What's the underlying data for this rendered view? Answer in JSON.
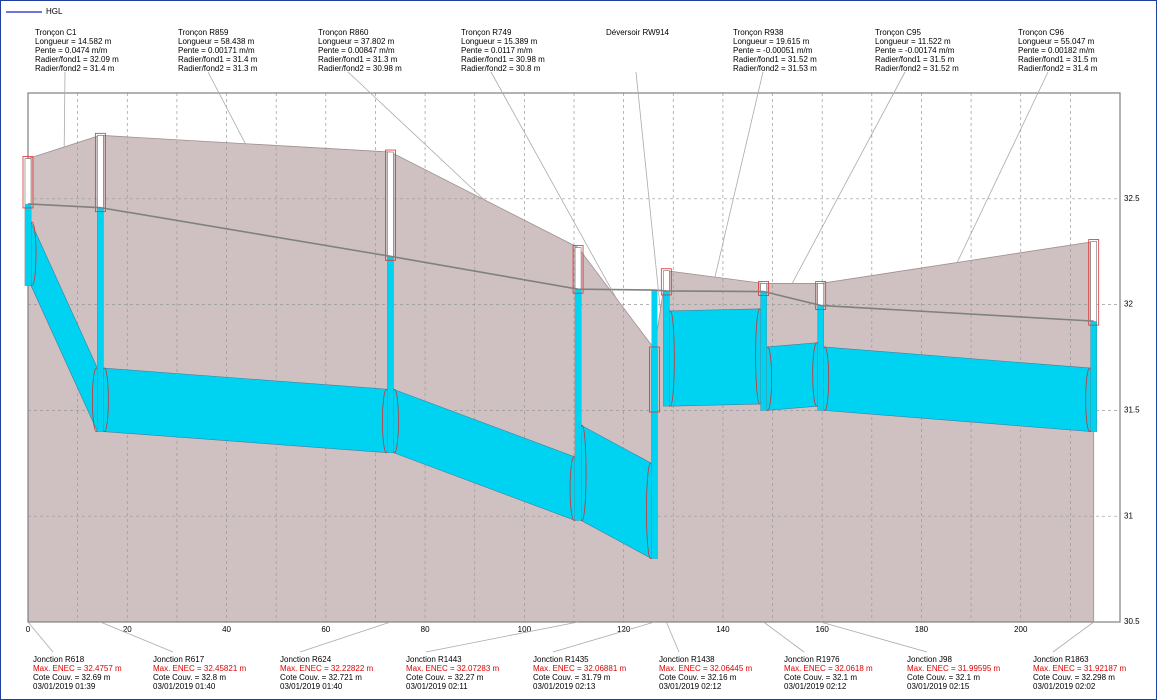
{
  "chart_data": {
    "type": "profile",
    "legend": "HGL",
    "legend_color": "#2020c0",
    "hgl_color": "#808080",
    "ground_color": "#cfc1c1",
    "pipe_color": "#00d2f2",
    "xlim": [
      0,
      220
    ],
    "ylim": [
      30.5,
      33
    ],
    "xticks": [
      0,
      20,
      40,
      60,
      80,
      100,
      120,
      140,
      160,
      180,
      200
    ],
    "xminor": [
      10,
      30,
      50,
      70,
      90,
      110,
      130,
      150,
      170,
      190,
      210
    ],
    "yticks": [
      30.5,
      31,
      31.5,
      32,
      32.5
    ],
    "grid": true,
    "junctions": [
      {
        "name": "Jonction R618",
        "x": 0,
        "hgl": 32.4757,
        "hgl_label": "Max. ENEC = 32.4757 m",
        "ground": 32.69,
        "ground_label": "Cote Couv. = 32.69 m",
        "time": "03/01/2019 01:39"
      },
      {
        "name": "Jonction R617",
        "x": 14.58,
        "hgl": 32.45821,
        "hgl_label": "Max. ENEC = 32.45821 m",
        "ground": 32.8,
        "ground_label": "Cote Couv. = 32.8 m",
        "time": "03/01/2019 01:40"
      },
      {
        "name": "Jonction R624",
        "x": 73.02,
        "hgl": 32.22822,
        "hgl_label": "Max. ENEC = 32.22822 m",
        "ground": 32.721,
        "ground_label": "Cote Couv. = 32.721 m",
        "time": "03/01/2019 01:40"
      },
      {
        "name": "Jonction R1443",
        "x": 110.82,
        "hgl": 32.07283,
        "hgl_label": "Max. ENEC = 32.07283 m",
        "ground": 32.27,
        "ground_label": "Cote Couv. = 32.27 m",
        "time": "03/01/2019 02:11"
      },
      {
        "name": "Jonction R1435",
        "x": 126.21,
        "hgl": 32.06881,
        "hgl_label": "Max. ENEC = 32.06881 m",
        "ground": 31.79,
        "ground_label": "Cote Couv. = 31.79 m",
        "time": "03/01/2019 02:13"
      },
      {
        "name": "Jonction R1438",
        "x": 128.6,
        "hgl": 32.06445,
        "hgl_label": "Max. ENEC = 32.06445 m",
        "ground": 32.16,
        "ground_label": "Cote Couv. = 32.16 m",
        "time": "03/01/2019 02:12"
      },
      {
        "name": "Jonction R1976",
        "x": 148.2,
        "hgl": 32.0618,
        "hgl_label": "Max. ENEC = 32.0618 m",
        "ground": 32.1,
        "ground_label": "Cote Couv. = 32.1 m",
        "time": "03/01/2019 02:12"
      },
      {
        "name": "Jonction J98",
        "x": 159.7,
        "hgl": 31.99595,
        "hgl_label": "Max. ENEC = 31.99595 m",
        "ground": 32.1,
        "ground_label": "Cote Couv. = 32.1 m",
        "time": "03/01/2019 02:15"
      },
      {
        "name": "Jonction R1863",
        "x": 214.7,
        "hgl": 31.92187,
        "hgl_label": "Max. ENEC = 31.92187 m",
        "ground": 32.298,
        "ground_label": "Cote Couv. = 32.298 m",
        "time": "03/01/2019 02:02"
      }
    ],
    "conduits": [
      {
        "name": "Tronçon C1",
        "length": "Longueur = 14.582 m",
        "slope": "Pente = 0.0474 m/m",
        "inv1": 32.09,
        "inv1_label": "Radier/fond1 = 32.09 m",
        "inv2": 31.4,
        "inv2_label": "Radier/fond2 = 31.4 m",
        "diameter": 0.3
      },
      {
        "name": "Tronçon R859",
        "length": "Longueur = 58.438 m",
        "slope": "Pente = 0.00171 m/m",
        "inv1": 31.4,
        "inv1_label": "Radier/fond1 = 31.4 m",
        "inv2": 31.3,
        "inv2_label": "Radier/fond2 = 31.3 m",
        "diameter": 0.3
      },
      {
        "name": "Tronçon R860",
        "length": "Longueur = 37.802 m",
        "slope": "Pente = 0.00847 m/m",
        "inv1": 31.3,
        "inv1_label": "Radier/fond1 = 31.3 m",
        "inv2": 30.98,
        "inv2_label": "Radier/fond2 = 30.98 m",
        "diameter": 0.3
      },
      {
        "name": "Tronçon R749",
        "length": "Longueur = 15.389 m",
        "slope": "Pente = 0.0117 m/m",
        "inv1": 30.98,
        "inv1_label": "Radier/fond1 = 30.98 m",
        "inv2": 30.8,
        "inv2_label": "Radier/fond2 = 30.8 m",
        "diameter": 0.45
      },
      {
        "name": "Déversoir RW914"
      },
      {
        "name": "Tronçon R938",
        "length": "Longueur = 19.615 m",
        "slope": "Pente = -0.00051 m/m",
        "inv1": 31.52,
        "inv1_label": "Radier/fond1 = 31.52 m",
        "inv2": 31.53,
        "inv2_label": "Radier/fond2 = 31.53 m",
        "diameter": 0.45
      },
      {
        "name": "Tronçon C95",
        "length": "Longueur = 11.522 m",
        "slope": "Pente = -0.00174 m/m",
        "inv1": 31.5,
        "inv1_label": "Radier/fond1 = 31.5 m",
        "inv2": 31.52,
        "inv2_label": "Radier/fond2 = 31.52 m",
        "diameter": 0.3
      },
      {
        "name": "Tronçon C96",
        "length": "Longueur = 55.047 m",
        "slope": "Pente = 0.00182 m/m",
        "inv1": 31.5,
        "inv1_label": "Radier/fond1 = 31.5 m",
        "inv2": 31.4,
        "inv2_label": "Radier/fond2 = 31.4 m",
        "diameter": 0.3
      }
    ]
  }
}
